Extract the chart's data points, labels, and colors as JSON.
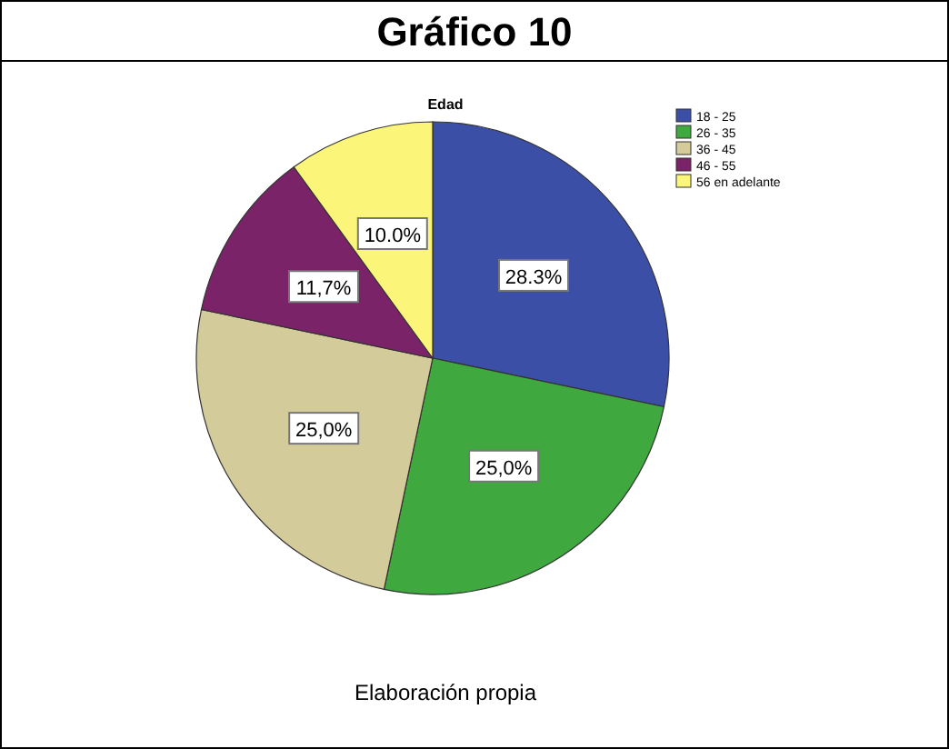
{
  "chart_data": {
    "type": "pie",
    "title": "Gráfico 10",
    "subtitle": "Edad",
    "categories": [
      "18 - 25",
      "26 - 35",
      "36 - 45",
      "46 - 55",
      "56 en adelante"
    ],
    "values": [
      28.3,
      25.0,
      25.0,
      11.7,
      10.0
    ],
    "value_labels": [
      "28.3%",
      "25,0%",
      "25,0%",
      "11,7%",
      "10.0%"
    ],
    "colors": [
      "#3c4fa6",
      "#3fa83f",
      "#d4cb9a",
      "#7b2369",
      "#fbf57a"
    ],
    "legend": "top right",
    "annotations": [
      "Elaboración propia"
    ]
  }
}
